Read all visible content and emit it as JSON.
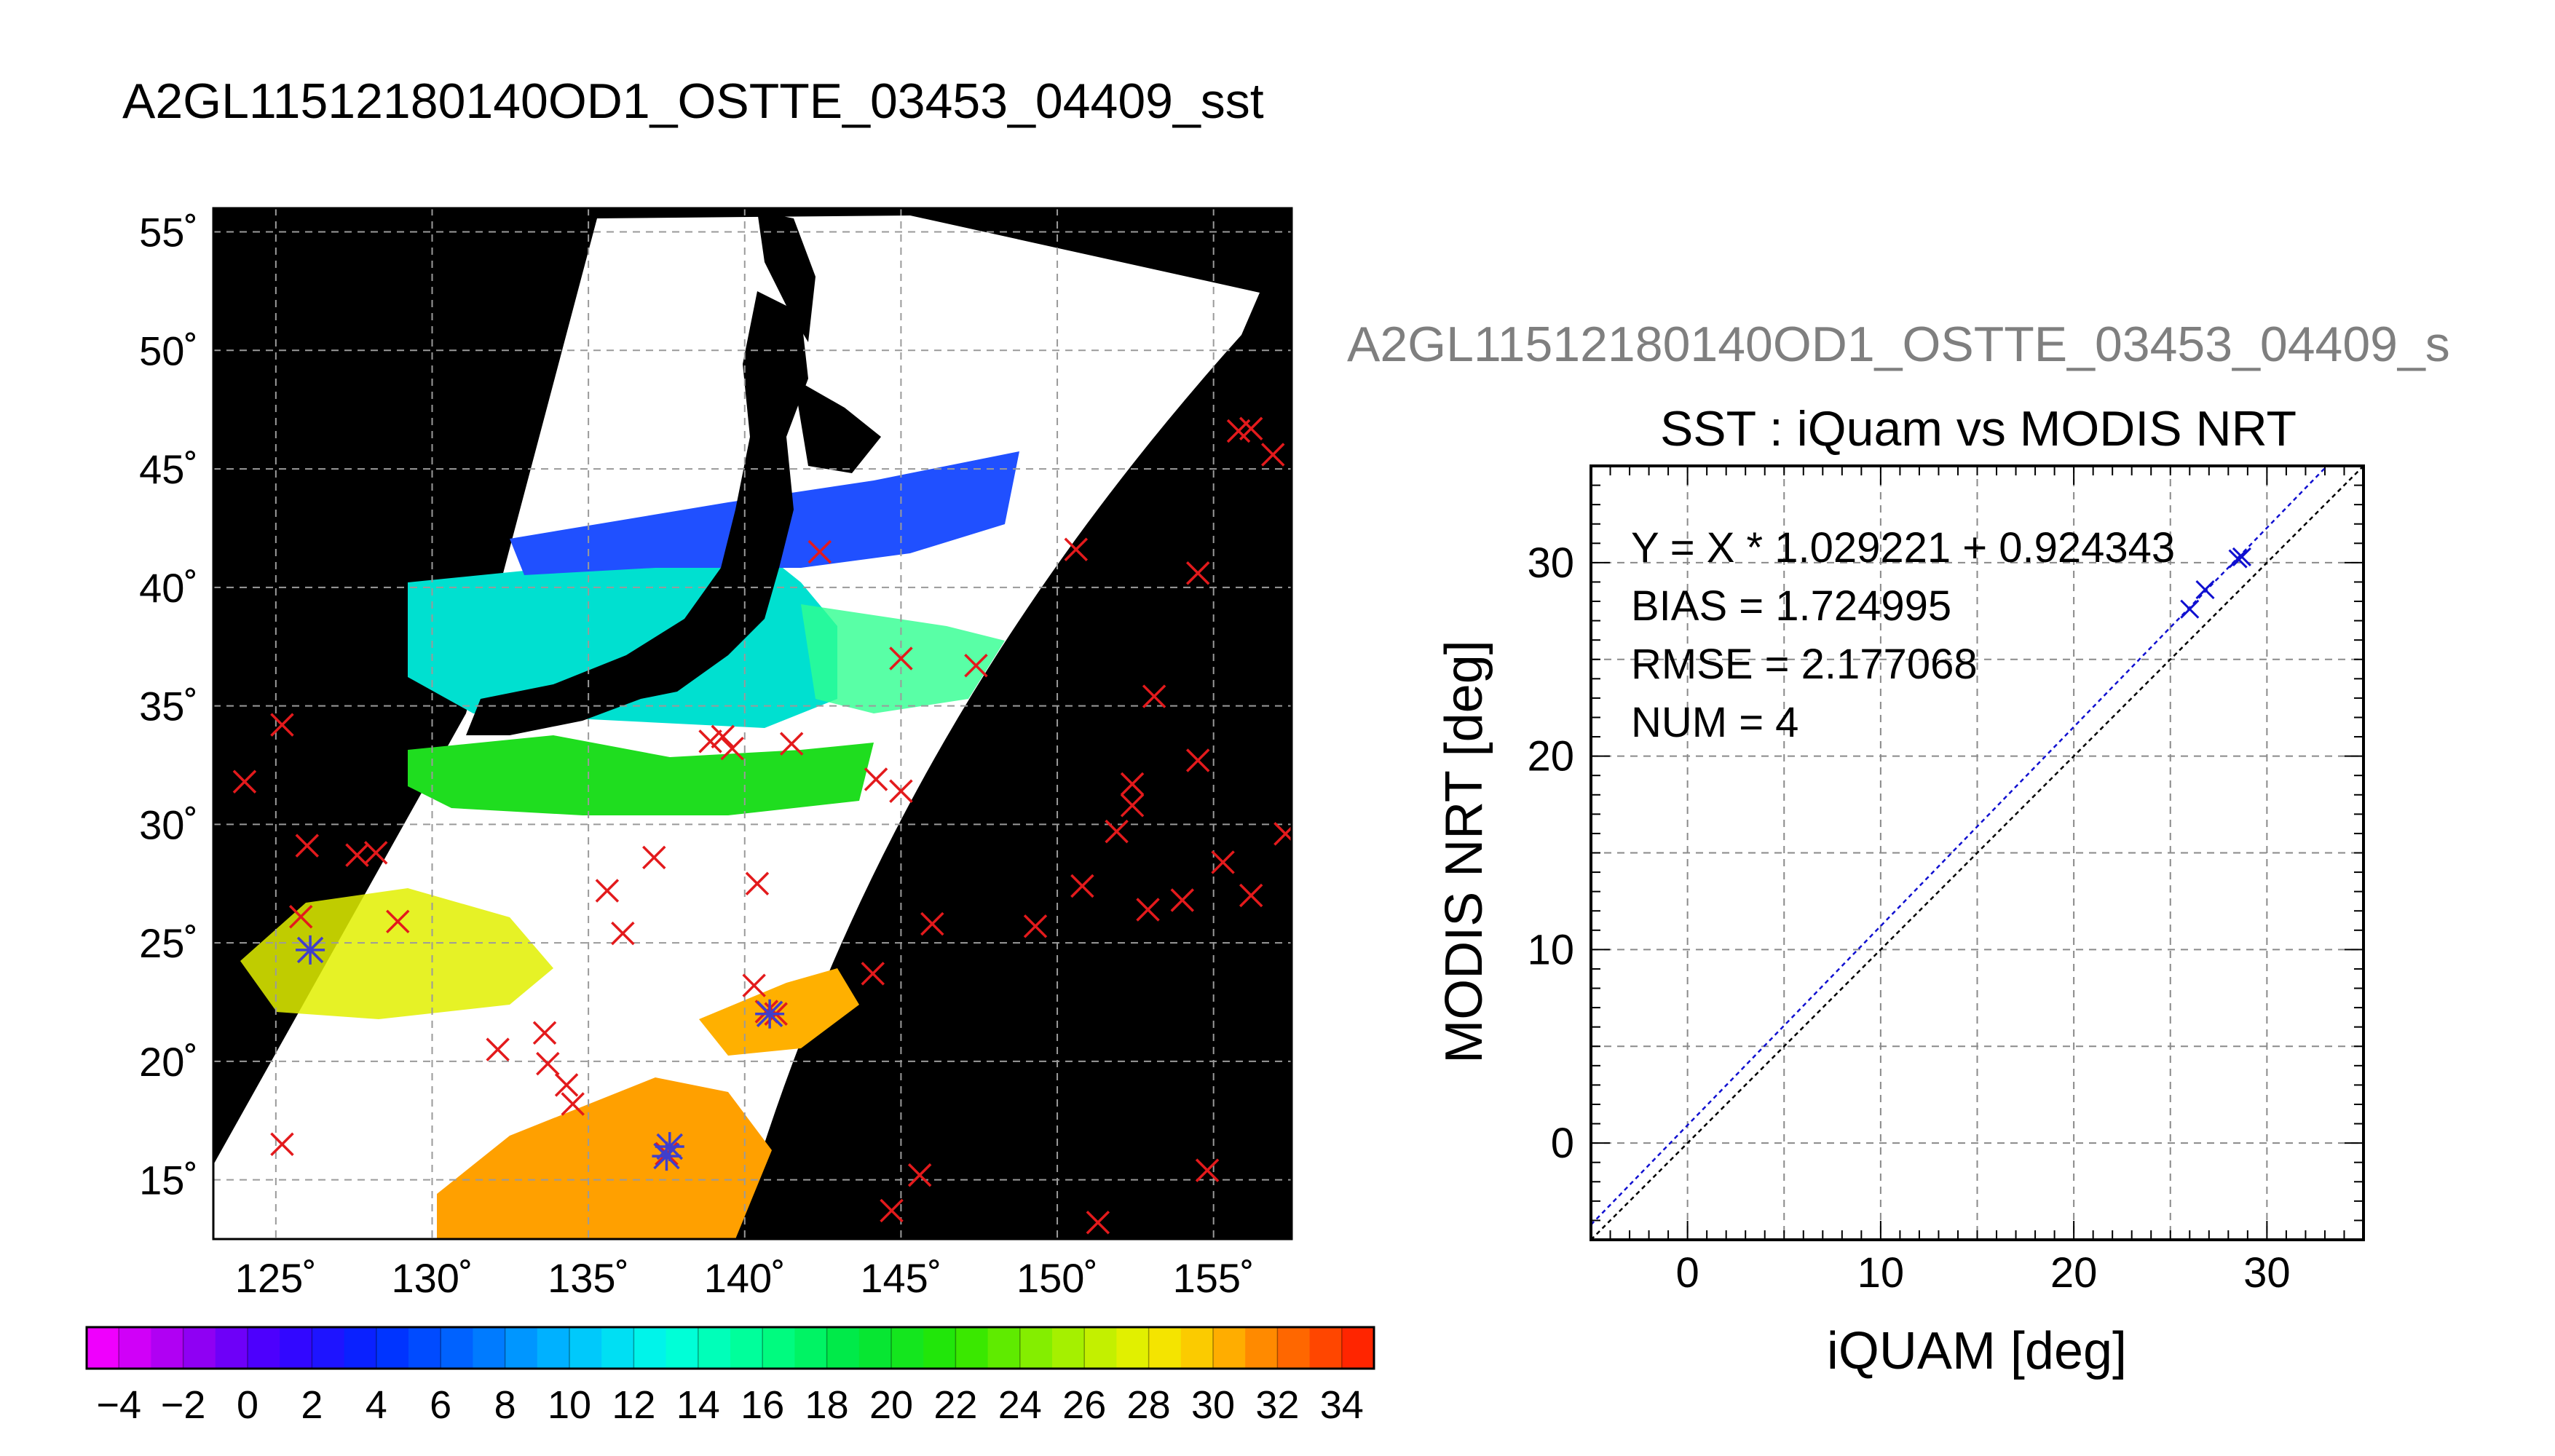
{
  "map_panel": {
    "title": "A2GL11512180140OD1_OSTTE_03453_04409_sst",
    "lon_ticks": [
      125,
      130,
      135,
      140,
      145,
      150,
      155
    ],
    "lat_ticks": [
      15,
      20,
      25,
      30,
      35,
      40,
      45,
      50,
      55
    ],
    "lon_tick_labels": [
      "125˚",
      "130˚",
      "135˚",
      "140˚",
      "145˚",
      "150˚",
      "155˚"
    ],
    "lat_tick_labels": [
      "15˚",
      "20˚",
      "25˚",
      "30˚",
      "35˚",
      "40˚",
      "45˚",
      "50˚",
      "55˚"
    ],
    "lon_range": [
      123,
      157.5
    ],
    "lat_range": [
      12.5,
      56
    ],
    "colorbar": {
      "min": -5,
      "max": 35,
      "tick_labels": [
        "−4",
        "−2",
        "0",
        "2",
        "4",
        "6",
        "8",
        "10",
        "12",
        "14",
        "16",
        "18",
        "20",
        "22",
        "24",
        "26",
        "28",
        "30",
        "32",
        "34"
      ],
      "tick_values": [
        -4,
        -2,
        0,
        2,
        4,
        6,
        8,
        10,
        12,
        14,
        16,
        18,
        20,
        22,
        24,
        26,
        28,
        30,
        32,
        34
      ]
    },
    "colors": {
      "land_or_nodata": "#000000",
      "grid": "#999999",
      "marker_iquam": "#e31a1c",
      "marker_match": "#3f3fcc"
    }
  },
  "scatter_panel": {
    "suptitle": "A2GL11512180140OD1_OSTTE_03453_04409_s",
    "title": "SST : iQuam vs MODIS NRT",
    "stats": {
      "fit": "Y = X * 1.029221 + 0.924343",
      "bias": "BIAS = 1.724995",
      "rmse": "RMSE = 2.177068",
      "num": "NUM = 4"
    }
  },
  "chart_data": [
    {
      "type": "scatter",
      "kind": "map",
      "title": "A2GL11512180140OD1_OSTTE_03453_04409_sst",
      "xlim": [
        123,
        157.5
      ],
      "ylim": [
        12.5,
        56
      ],
      "grid": true,
      "series": [
        {
          "points": [
            [
              124.0,
              31.8
            ],
            [
              125.2,
              34.2
            ],
            [
              125.2,
              16.5
            ],
            [
              126.0,
              29.1
            ],
            [
              125.8,
              26.1
            ],
            [
              126.1,
              24.7
            ],
            [
              127.6,
              28.7
            ],
            [
              128.2,
              28.8
            ],
            [
              128.9,
              25.9
            ],
            [
              132.1,
              20.5
            ],
            [
              133.6,
              21.2
            ],
            [
              133.7,
              19.9
            ],
            [
              134.3,
              19.0
            ],
            [
              134.5,
              18.2
            ],
            [
              135.6,
              27.2
            ],
            [
              136.1,
              25.4
            ],
            [
              137.1,
              28.6
            ],
            [
              137.5,
              16.1
            ],
            [
              138.9,
              33.5
            ],
            [
              139.3,
              33.7
            ],
            [
              139.6,
              33.2
            ],
            [
              140.4,
              27.5
            ],
            [
              140.3,
              23.2
            ],
            [
              140.7,
              22.1
            ],
            [
              141.0,
              22.0
            ],
            [
              141.5,
              33.4
            ],
            [
              142.4,
              41.5
            ],
            [
              144.2,
              31.9
            ],
            [
              144.1,
              23.7
            ],
            [
              144.7,
              13.7
            ],
            [
              145.0,
              37.0
            ],
            [
              145.0,
              31.4
            ],
            [
              145.6,
              15.2
            ],
            [
              146.0,
              25.8
            ],
            [
              147.4,
              36.7
            ],
            [
              149.3,
              25.7
            ],
            [
              150.6,
              41.6
            ],
            [
              150.8,
              27.4
            ],
            [
              151.3,
              13.2
            ],
            [
              151.9,
              29.7
            ],
            [
              152.4,
              31.7
            ],
            [
              152.4,
              30.8
            ],
            [
              152.9,
              26.4
            ],
            [
              153.1,
              35.4
            ],
            [
              154.0,
              26.8
            ],
            [
              154.5,
              32.7
            ],
            [
              154.5,
              40.6
            ],
            [
              154.8,
              15.4
            ],
            [
              155.3,
              28.4
            ],
            [
              155.8,
              46.6
            ],
            [
              156.2,
              46.7
            ],
            [
              156.2,
              27.0
            ],
            [
              156.9,
              45.6
            ],
            [
              157.3,
              29.6
            ]
          ]
        },
        {
          "points": [
            [
              126.1,
              24.7
            ],
            [
              137.5,
              16.0
            ],
            [
              140.8,
              22.0
            ],
            [
              137.6,
              16.4
            ]
          ]
        }
      ]
    },
    {
      "type": "scatter",
      "title": "SST : iQuam vs MODIS NRT",
      "xlabel": "iQUAM [deg]",
      "ylabel": "MODIS NRT [deg]",
      "xlim": [
        -5,
        35
      ],
      "ylim": [
        -5,
        35
      ],
      "xticks": [
        0,
        10,
        20,
        30
      ],
      "yticks": [
        0,
        10,
        20,
        30
      ],
      "grid": true,
      "series": [
        {
          "points": [
            [
              26.0,
              27.6
            ],
            [
              26.8,
              28.6
            ],
            [
              28.5,
              30.2
            ],
            [
              28.7,
              30.3
            ]
          ]
        }
      ],
      "fit": {
        "slope": 1.029221,
        "intercept": 0.924343
      },
      "identity_line": true
    }
  ]
}
